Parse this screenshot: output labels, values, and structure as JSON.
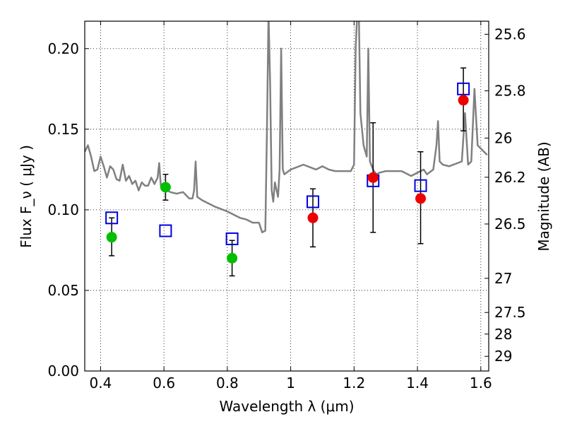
{
  "chart_data": {
    "type": "scatter",
    "xlabel": "Wavelength  λ (μm)",
    "ylabel": "Flux  F_ν  ( μJy )",
    "y2label": "Magnitude (AB)",
    "xlim": [
      0.35,
      1.625
    ],
    "ylim": [
      0.0,
      0.217
    ],
    "x_ticks": [
      0.4,
      0.6,
      0.8,
      1.0,
      1.2,
      1.4,
      1.6
    ],
    "x_tick_labels": [
      "0.4",
      "0.6",
      "0.8",
      "1",
      "1.2",
      "1.4",
      "1.6"
    ],
    "y_ticks": [
      0.0,
      0.05,
      0.1,
      0.15,
      0.2
    ],
    "y_tick_labels": [
      "0.00",
      "0.05",
      "0.10",
      "0.15",
      "0.20"
    ],
    "y2_ticks": [
      {
        "label": "25.6",
        "flux": 0.2089
      },
      {
        "label": "25.8",
        "flux": 0.1738
      },
      {
        "label": "26",
        "flux": 0.1445
      },
      {
        "label": "26.2",
        "flux": 0.1202
      },
      {
        "label": "26.5",
        "flux": 0.0912
      },
      {
        "label": "27",
        "flux": 0.0575
      },
      {
        "label": "27.5",
        "flux": 0.0363
      },
      {
        "label": "28",
        "flux": 0.0229
      },
      {
        "label": "29",
        "flux": 0.0091
      }
    ],
    "grid": true,
    "series": [
      {
        "marker": "circle",
        "color": "#00bf00",
        "x": [
          0.435,
          0.605,
          0.815
        ],
        "y": [
          0.083,
          0.114,
          0.07
        ],
        "yerr_low": [
          0.0115,
          0.008,
          0.011
        ],
        "yerr_high": [
          0.012,
          0.008,
          0.011
        ]
      },
      {
        "marker": "circle",
        "color": "#ee0000",
        "x": [
          1.07,
          1.26,
          1.41,
          1.545
        ],
        "y": [
          0.095,
          0.12,
          0.107,
          0.168
        ],
        "yerr_low": [
          0.018,
          0.034,
          0.028,
          0.019
        ],
        "yerr_high": [
          0.018,
          0.034,
          0.029,
          0.02
        ]
      },
      {
        "marker": "square",
        "color": "#0000dd",
        "x": [
          0.435,
          0.605,
          0.815,
          1.07,
          1.26,
          1.41,
          1.545
        ],
        "y": [
          0.095,
          0.087,
          0.082,
          0.105,
          0.118,
          0.115,
          0.175
        ]
      },
      {
        "marker": "line",
        "color": "#808080",
        "x": [
          0.35,
          0.36,
          0.37,
          0.38,
          0.39,
          0.4,
          0.41,
          0.42,
          0.43,
          0.44,
          0.45,
          0.46,
          0.47,
          0.48,
          0.49,
          0.5,
          0.51,
          0.52,
          0.53,
          0.54,
          0.55,
          0.56,
          0.57,
          0.58,
          0.585,
          0.59,
          0.6,
          0.62,
          0.64,
          0.66,
          0.68,
          0.69,
          0.695,
          0.7,
          0.705,
          0.72,
          0.76,
          0.8,
          0.84,
          0.86,
          0.88,
          0.9,
          0.91,
          0.92,
          0.925,
          0.93,
          0.935,
          0.94,
          0.945,
          0.95,
          0.96,
          0.965,
          0.97,
          0.975,
          0.98,
          1.0,
          1.04,
          1.08,
          1.1,
          1.12,
          1.14,
          1.16,
          1.18,
          1.19,
          1.2,
          1.205,
          1.21,
          1.215,
          1.22,
          1.23,
          1.24,
          1.245,
          1.25,
          1.26,
          1.27,
          1.28,
          1.3,
          1.35,
          1.38,
          1.4,
          1.42,
          1.43,
          1.45,
          1.46,
          1.465,
          1.47,
          1.48,
          1.5,
          1.54,
          1.55,
          1.56,
          1.57,
          1.58,
          1.59,
          1.6,
          1.61,
          1.62
        ],
        "y": [
          0.136,
          0.14,
          0.133,
          0.124,
          0.125,
          0.133,
          0.127,
          0.12,
          0.127,
          0.125,
          0.119,
          0.118,
          0.128,
          0.118,
          0.121,
          0.116,
          0.118,
          0.112,
          0.117,
          0.115,
          0.115,
          0.12,
          0.116,
          0.12,
          0.129,
          0.115,
          0.113,
          0.111,
          0.11,
          0.111,
          0.107,
          0.107,
          0.112,
          0.13,
          0.108,
          0.106,
          0.102,
          0.099,
          0.095,
          0.094,
          0.092,
          0.092,
          0.086,
          0.087,
          0.15,
          0.222,
          0.18,
          0.112,
          0.105,
          0.117,
          0.108,
          0.125,
          0.2,
          0.125,
          0.122,
          0.125,
          0.128,
          0.125,
          0.127,
          0.125,
          0.124,
          0.124,
          0.124,
          0.124,
          0.128,
          0.2,
          0.222,
          0.222,
          0.16,
          0.14,
          0.133,
          0.2,
          0.13,
          0.125,
          0.122,
          0.123,
          0.124,
          0.124,
          0.121,
          0.123,
          0.125,
          0.122,
          0.125,
          0.14,
          0.155,
          0.13,
          0.128,
          0.127,
          0.13,
          0.16,
          0.128,
          0.13,
          0.175,
          0.14,
          0.138,
          0.136,
          0.134
        ]
      }
    ]
  }
}
